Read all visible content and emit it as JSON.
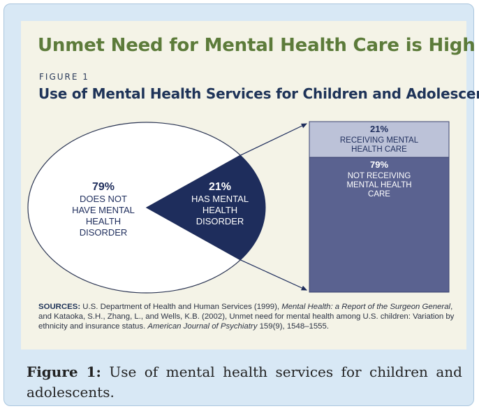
{
  "header": {
    "title": "Unmet Need for Mental Health Care is High",
    "figure_label": "FIGURE 1",
    "subtitle": "Use of Mental Health Services for Children and Adolescents"
  },
  "chart_data": {
    "type": "pie",
    "title": "Use of Mental Health Services for Children and Adolescents",
    "slices": [
      {
        "value": 79,
        "label": "79%",
        "text": [
          "DOES NOT",
          "HAVE MENTAL",
          "HEALTH",
          "DISORDER"
        ],
        "color": "#ffffff"
      },
      {
        "value": 21,
        "label": "21%",
        "text": [
          "HAS MENTAL",
          "HEALTH",
          "DISORDER"
        ],
        "color": "#1e2d5c"
      }
    ],
    "breakdown": {
      "of_slice": "21%",
      "segments": [
        {
          "value": 21,
          "label": "21%",
          "text": [
            "RECEIVING MENTAL",
            "HEALTH CARE"
          ],
          "color": "#bcc2d8"
        },
        {
          "value": 79,
          "label": "79%",
          "text": [
            "NOT RECEIVING",
            "MENTAL HEALTH",
            "CARE"
          ],
          "color": "#5a6290"
        }
      ]
    }
  },
  "sources": {
    "lead": "SOURCES:",
    "part1": " U.S. Department of Health and Human Services (1999), ",
    "italic1": "Mental Health: a Report of the Surgeon General",
    "part2": ", and Kataoka, S.H., Zhang, L., and Wells, K.B. (2002), Unmet need for mental health among U.S. children: Variation by ethnicity and insurance status. ",
    "italic2": "American Journal of Psychiatry",
    "part3": " 159(9), 1548–1555."
  },
  "caption": {
    "label": "Figure 1:",
    "text": " Use of mental health services for children and adolescents."
  },
  "colors": {
    "headline": "#5c7b3a",
    "navy": "#1e2d5c",
    "panel": "#f4f3e7",
    "frame": "#d8e8f5"
  }
}
